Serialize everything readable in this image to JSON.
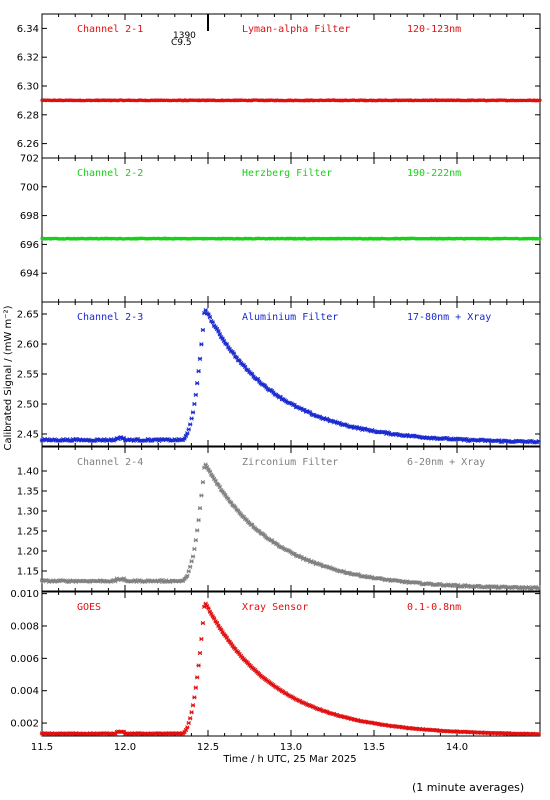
{
  "chart_data": {
    "type": "scatter",
    "xlabel": "Time / h UTC, 25 Mar 2025",
    "ylabel": "Calibrated Signal / (mW m⁻²)",
    "xlim": [
      11.5,
      14.5
    ],
    "x_ticks": [
      "11.5",
      "12.0",
      "12.5",
      "13.0",
      "13.5",
      "14.0"
    ],
    "footer": "(1 minute averages)",
    "flare_marker": {
      "x": 12.5,
      "label_top": "1390",
      "label_bottom": "C9.5"
    },
    "panels": [
      {
        "name": "Channel 2-1",
        "filter": "Lyman-alpha Filter",
        "band": "120-123nm",
        "color": "#e01010",
        "ylim": [
          6.25,
          6.35
        ],
        "y_ticks": [
          "6.26",
          "6.28",
          "6.30",
          "6.32",
          "6.34"
        ],
        "profile": {
          "shape": "flat",
          "base": 6.29,
          "peak": 6.29,
          "end": 6.29,
          "noise": 0.0003
        }
      },
      {
        "name": "Channel 2-2",
        "filter": "Herzberg Filter",
        "band": "190-222nm",
        "color": "#18d018",
        "ylim": [
          692,
          702
        ],
        "y_ticks": [
          "694",
          "696",
          "698",
          "700",
          "702"
        ],
        "profile": {
          "shape": "flat",
          "base": 696.4,
          "peak": 696.4,
          "end": 696.4,
          "noise": 0.03
        }
      },
      {
        "name": "Channel 2-3",
        "filter": "Aluminium Filter",
        "band": "17-80nm + Xray",
        "color": "#1a2ad0",
        "ylim": [
          2.43,
          2.67
        ],
        "y_ticks": [
          "2.45",
          "2.50",
          "2.55",
          "2.60",
          "2.65"
        ],
        "profile": {
          "shape": "flare",
          "base": 2.44,
          "peak": 2.66,
          "end": 2.435,
          "noise": 0.0015
        }
      },
      {
        "name": "Channel 2-4",
        "filter": "Zirconium Filter",
        "band": "6-20nm + Xray",
        "color": "#808080",
        "ylim": [
          1.1,
          1.46
        ],
        "y_ticks": [
          "1.15",
          "1.20",
          "1.25",
          "1.30",
          "1.35",
          "1.40"
        ],
        "profile": {
          "shape": "flare",
          "base": 1.125,
          "peak": 1.42,
          "end": 1.105,
          "noise": 0.002
        }
      },
      {
        "name": "GOES",
        "filter": "Xray Sensor",
        "band": "0.1-0.8nm",
        "color": "#e01010",
        "ylim": [
          0.0012,
          0.0101
        ],
        "y_ticks": [
          "0.002",
          "0.004",
          "0.006",
          "0.008",
          "0.010"
        ],
        "profile": {
          "shape": "flare",
          "base": 0.00135,
          "peak": 0.0095,
          "end": 0.00125,
          "noise": 2e-05
        }
      }
    ]
  }
}
